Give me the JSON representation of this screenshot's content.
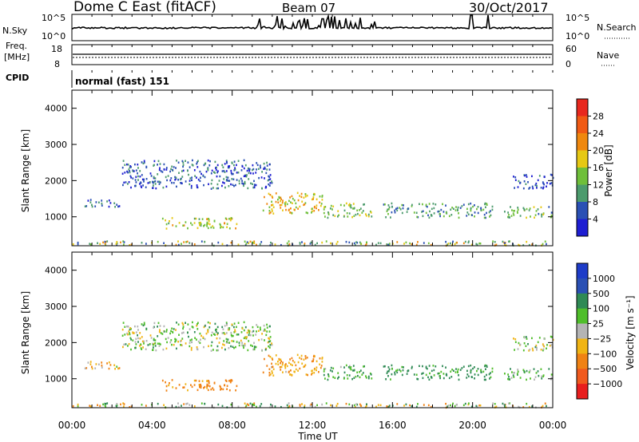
{
  "header": {
    "station": "Dome C East (fitACF)",
    "beam": "Beam 07",
    "date": "30/Oct/2017"
  },
  "small_panels": {
    "nsky_label": "N.Sky",
    "nsky_ticks": [
      "10^5",
      "10^0"
    ],
    "nsearch_label": "N.Search",
    "nsearch_ticks": [
      "10^5",
      "10^0"
    ],
    "freq_label_1": "Freq.",
    "freq_label_2": "[MHz]",
    "freq_ticks": [
      "18",
      "8"
    ],
    "nave_label": "Nave",
    "nave_ticks": [
      "60",
      "0"
    ],
    "cpid_label": "CPID",
    "cpid_value": "normal (fast) 151"
  },
  "axes": {
    "ylabel": "Slant Range [km]",
    "yticks": [
      "4000",
      "3000",
      "2000",
      "1000"
    ],
    "xlabel": "Time UT",
    "xticks": [
      "00:00",
      "04:00",
      "08:00",
      "12:00",
      "16:00",
      "20:00",
      "00:00"
    ]
  },
  "colorbars": {
    "power": {
      "label": "Power [dB]",
      "ticks": [
        "28",
        "24",
        "20",
        "16",
        "12",
        "8",
        "4"
      ],
      "colors": [
        "#e8281e",
        "#f05a14",
        "#f0880e",
        "#e6c814",
        "#6fbf3a",
        "#4c9b6d",
        "#2a50b4",
        "#1e1ed2"
      ]
    },
    "velocity": {
      "label": "Velocity [m s⁻¹]",
      "ticks": [
        "1000",
        "500",
        "100",
        "25",
        "−25",
        "−100",
        "−500",
        "−1000"
      ],
      "colors": [
        "#1e3cc8",
        "#2a50b4",
        "#2f8a55",
        "#4fbe2a",
        "#b4b4b4",
        "#f0b414",
        "#f08214",
        "#f05a1e",
        "#e81e1e"
      ]
    }
  },
  "chart_data": {
    "type": "heatmap",
    "x_unit": "hours UT",
    "xlim": [
      0,
      24
    ],
    "ylim": [
      200,
      4500
    ],
    "regions": [
      {
        "t0": 4.5,
        "t1": 7.0,
        "r0": 700,
        "r1": 1000,
        "power": 16,
        "velocity": -150
      },
      {
        "t0": 6.8,
        "t1": 8.2,
        "r0": 700,
        "r1": 1000,
        "power": 18,
        "velocity": -200
      },
      {
        "t0": 2.5,
        "t1": 10.0,
        "r0": 1800,
        "r1": 2600,
        "power": 6,
        "velocity": 30
      },
      {
        "t0": 9.5,
        "t1": 12.5,
        "r0": 1100,
        "r1": 1700,
        "power": 18,
        "velocity": -120
      },
      {
        "t0": 12.5,
        "t1": 15.0,
        "r0": 1000,
        "r1": 1400,
        "power": 14,
        "velocity": 100
      },
      {
        "t0": 15.5,
        "t1": 21.0,
        "r0": 1000,
        "r1": 1400,
        "power": 10,
        "velocity": 150
      },
      {
        "t0": 21.5,
        "t1": 24.0,
        "r0": 1000,
        "r1": 1300,
        "power": 12,
        "velocity": 80
      },
      {
        "t0": 22.0,
        "t1": 24.0,
        "r0": 1800,
        "r1": 2200,
        "power": 5,
        "velocity": 20
      },
      {
        "t0": 0.5,
        "t1": 2.5,
        "r0": 1300,
        "r1": 1500,
        "power": 6,
        "velocity": -60
      }
    ]
  }
}
